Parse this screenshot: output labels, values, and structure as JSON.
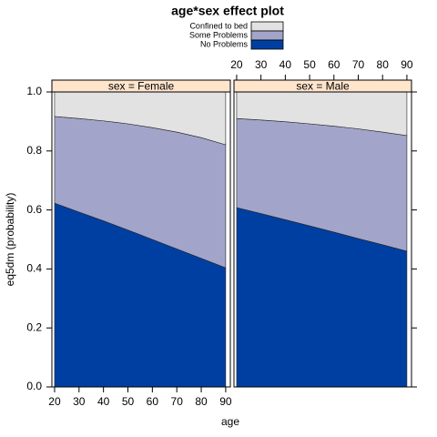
{
  "chart_data": {
    "type": "area",
    "stacked": true,
    "title": "age*sex effect plot",
    "xlabel": "age",
    "ylabel": "eq5dm (probability)",
    "panels": [
      "sex = Female",
      "sex = Male"
    ],
    "strip_color": "#ffe5cc",
    "x": [
      20,
      30,
      40,
      50,
      60,
      70,
      80,
      90
    ],
    "xlim": [
      18.9,
      91.9
    ],
    "xticks": [
      20,
      30,
      40,
      50,
      60,
      70,
      80,
      90
    ],
    "ylim": [
      0,
      1
    ],
    "yticks": [
      {
        "value": 0,
        "label": "0.0"
      },
      0.2,
      0.4,
      0.6,
      0.8,
      {
        "value": 1,
        "label": "1.0"
      }
    ],
    "series": [
      {
        "name": "Confined to bed",
        "color": "#e2e2e2",
        "values": [
          [
            0.083,
            0.09,
            0.098,
            0.108,
            0.121,
            0.136,
            0.155,
            0.179
          ],
          [
            0.09,
            0.095,
            0.101,
            0.108,
            0.116,
            0.125,
            0.136,
            0.148
          ]
        ]
      },
      {
        "name": "Some Problems",
        "color": "#a2a5c9",
        "values": [
          [
            0.294,
            0.317,
            0.339,
            0.36,
            0.379,
            0.396,
            0.409,
            0.417
          ],
          [
            0.302,
            0.317,
            0.332,
            0.346,
            0.359,
            0.372,
            0.382,
            0.392
          ]
        ]
      },
      {
        "name": "No Problems",
        "color": "#003fa2",
        "values": [
          [
            0.623,
            0.593,
            0.563,
            0.532,
            0.5,
            0.468,
            0.436,
            0.404
          ],
          [
            0.608,
            0.588,
            0.567,
            0.546,
            0.525,
            0.503,
            0.482,
            0.46
          ]
        ]
      }
    ]
  }
}
